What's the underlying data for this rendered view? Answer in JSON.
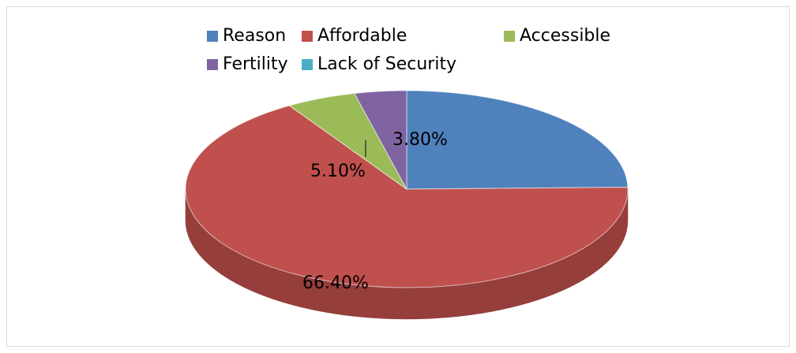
{
  "chart_data": {
    "type": "pie3d",
    "categories": [
      "Reason",
      "Affordable",
      "Accessible",
      "Fertility",
      "Lack of Security"
    ],
    "values": [
      24.7,
      66.4,
      5.1,
      3.8,
      0
    ],
    "value_labels": [
      null,
      "66.40%",
      "5.10%",
      "3.80%",
      null
    ],
    "colors": [
      "#4f81bd",
      "#c0504d",
      "#9bbb59",
      "#8064a2",
      "#4bacc6"
    ],
    "legend": "top"
  }
}
